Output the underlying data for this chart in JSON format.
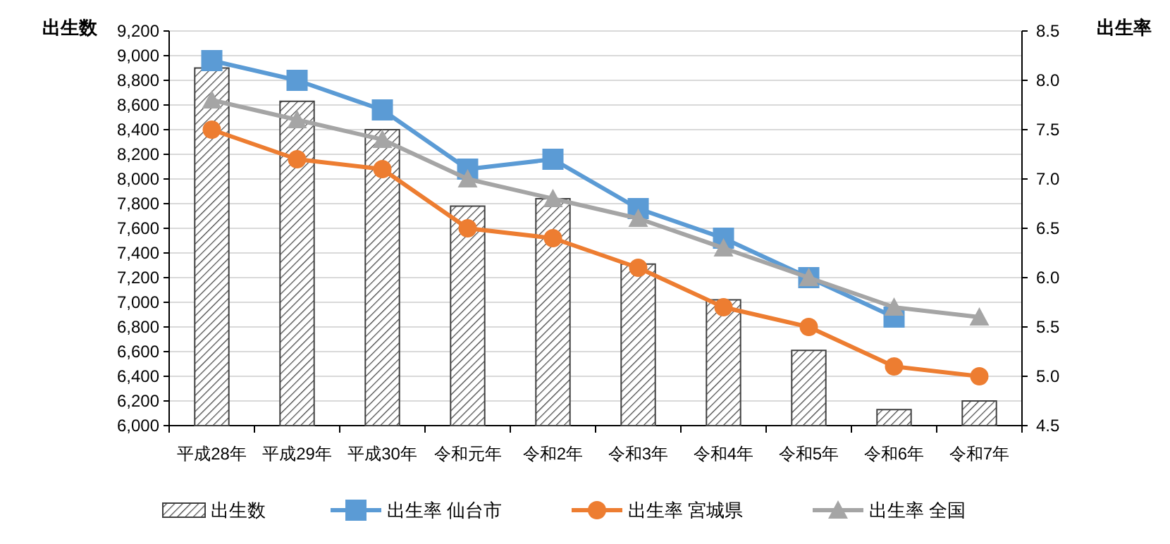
{
  "chart_data": {
    "type": "bar",
    "ylabel": "出生数",
    "y2label": "出生率",
    "categories": [
      "平成28年",
      "平成29年",
      "平成30年",
      "令和元年",
      "令和2年",
      "令和3年",
      "令和4年",
      "令和5年",
      "令和6年",
      "令和7年"
    ],
    "series": [
      {
        "name": "出生数",
        "color": "#404040",
        "values": [
          8900,
          8630,
          8400,
          7780,
          7840,
          7310,
          7020,
          6610,
          6130,
          6200
        ]
      },
      {
        "name": "出生率 仙台市",
        "type": "line",
        "axis": "y2",
        "marker": "square",
        "color": "#5b9bd5",
        "values": [
          8.2,
          8.0,
          7.7,
          7.1,
          7.2,
          6.7,
          6.4,
          6.0,
          5.6,
          null
        ]
      },
      {
        "name": "出生率 宮城県",
        "type": "line",
        "axis": "y2",
        "marker": "circle",
        "color": "#ed7d31",
        "values": [
          7.5,
          7.2,
          7.1,
          6.5,
          6.4,
          6.1,
          5.7,
          5.5,
          5.1,
          5.0
        ]
      },
      {
        "name": "出生率 全国",
        "type": "line",
        "axis": "y2",
        "marker": "triangle",
        "color": "#a5a5a5",
        "values": [
          7.8,
          7.6,
          7.4,
          7.0,
          6.8,
          6.6,
          6.3,
          6.0,
          5.7,
          5.6
        ]
      }
    ],
    "ylim": [
      6000,
      9200
    ],
    "yticks": [
      {
        "value": 6000,
        "label": "6,000"
      },
      {
        "value": 6200,
        "label": "6,200"
      },
      {
        "value": 6400,
        "label": "6,400"
      },
      {
        "value": 6600,
        "label": "6,600"
      },
      {
        "value": 6800,
        "label": "6,800"
      },
      {
        "value": 7000,
        "label": "7,000"
      },
      {
        "value": 7200,
        "label": "7,200"
      },
      {
        "value": 7400,
        "label": "7,400"
      },
      {
        "value": 7600,
        "label": "7,600"
      },
      {
        "value": 7800,
        "label": "7,800"
      },
      {
        "value": 8000,
        "label": "8,000"
      },
      {
        "value": 8200,
        "label": "8,200"
      },
      {
        "value": 8400,
        "label": "8,400"
      },
      {
        "value": 8600,
        "label": "8,600"
      },
      {
        "value": 8800,
        "label": "8,800"
      },
      {
        "value": 9000,
        "label": "9,000"
      },
      {
        "value": 9200,
        "label": "9,200"
      }
    ],
    "y2lim": [
      4.5,
      8.5
    ],
    "y2ticks": [
      {
        "value": 4.5,
        "label": "4.5"
      },
      {
        "value": 5,
        "label": "5.0"
      },
      {
        "value": 5.5,
        "label": "5.5"
      },
      {
        "value": 6,
        "label": "6.0"
      },
      {
        "value": 6.5,
        "label": "6.5"
      },
      {
        "value": 7,
        "label": "7.0"
      },
      {
        "value": 7.5,
        "label": "7.5"
      },
      {
        "value": 8,
        "label": "8.0"
      },
      {
        "value": 8.5,
        "label": "8.5"
      }
    ],
    "grid": "y",
    "legend": "bottom",
    "line_style": "solid"
  }
}
